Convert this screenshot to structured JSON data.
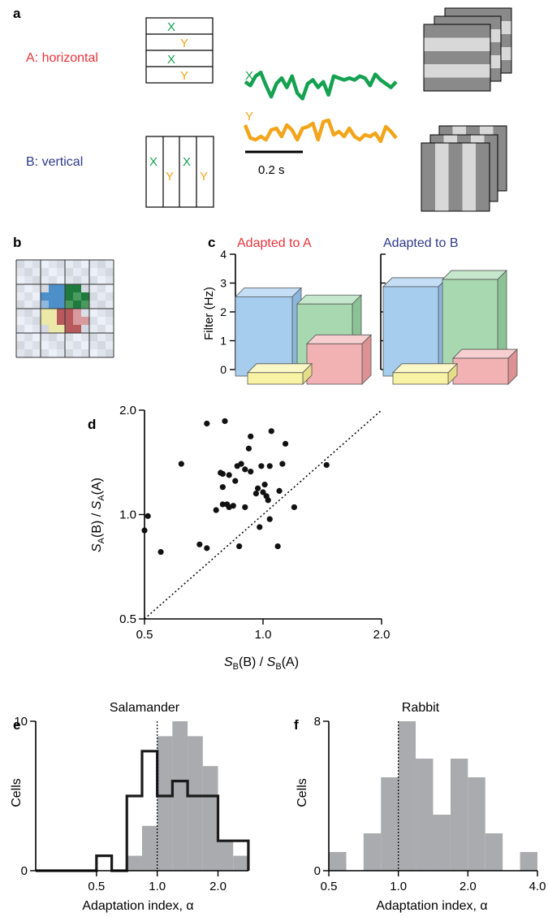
{
  "panel_labels": {
    "a": "a",
    "b": "b",
    "c": "c",
    "d": "d",
    "e": "e",
    "f": "f"
  },
  "panel_a": {
    "label_A": "A: horizontal",
    "label_B": "B: vertical",
    "label_A_color": "#e8343a",
    "label_B_color": "#2e3a8c",
    "x_label": "X",
    "y_label": "Y",
    "x_color": "#14a150",
    "y_color": "#f2a51a",
    "scale_label": "0.2 s",
    "trace_x": [
      0.45,
      0.55,
      0.3,
      0.2,
      0.55,
      0.85,
      0.5,
      0.35,
      0.6,
      0.3,
      0.75,
      0.9,
      0.5,
      0.4,
      0.6,
      0.45,
      0.8,
      0.3,
      0.35,
      0.4,
      0.35,
      0.4,
      0.3,
      0.35,
      0.55,
      0.25,
      0.4,
      0.5,
      0.6,
      0.45
    ],
    "trace_y": [
      0.35,
      0.75,
      0.8,
      0.7,
      0.8,
      0.5,
      0.45,
      0.7,
      0.35,
      0.5,
      0.8,
      0.45,
      0.4,
      0.3,
      0.8,
      0.25,
      0.2,
      0.65,
      0.55,
      0.7,
      0.45,
      0.7,
      0.8,
      0.65,
      0.7,
      0.6,
      0.85,
      0.4,
      0.55,
      0.75
    ]
  },
  "chart_data": [
    {
      "panel": "c",
      "type": "bar",
      "ylabel": "Filter (Hz)",
      "ylim": [
        0,
        4
      ],
      "yticks": [
        "0",
        "1",
        "2",
        "3",
        "4"
      ],
      "groups": [
        {
          "title": "Adapted to A",
          "title_color": "#e8343a",
          "bars": [
            {
              "color": "blue",
              "value": 2.75
            },
            {
              "color": "green",
              "value": 2.5
            },
            {
              "color": "red",
              "value": 1.4
            },
            {
              "color": "yellow",
              "value": 0.4
            }
          ]
        },
        {
          "title": "Adapted to B",
          "title_color": "#2e3a8c",
          "bars": [
            {
              "color": "blue",
              "value": 3.1
            },
            {
              "color": "green",
              "value": 3.35
            },
            {
              "color": "red",
              "value": 0.9
            },
            {
              "color": "yellow",
              "value": 0.4
            }
          ]
        }
      ]
    },
    {
      "panel": "d",
      "type": "scatter",
      "xlabel_main": "S",
      "xlabel_sub": "B",
      "xlabel_rest": "(B) / ",
      "xlabel_main2": "S",
      "xlabel_sub2": "B",
      "xlabel_rest2": "(A)",
      "ylabel_main": "S",
      "ylabel_sub": "A",
      "ylabel_rest": "(B) / ",
      "ylabel_main2": "S",
      "ylabel_sub2": "A",
      "ylabel_rest2": "(A)",
      "xscale": "log",
      "yscale": "log",
      "xlim": [
        0.5,
        2.0
      ],
      "ylim": [
        0.5,
        2.0
      ],
      "xticks": [
        {
          "v": 0.5,
          "l": "0.5"
        },
        {
          "v": 1.0,
          "l": "1.0"
        },
        {
          "v": 2.0,
          "l": "2.0"
        }
      ],
      "yticks": [
        {
          "v": 0.5,
          "l": "0.5"
        },
        {
          "v": 1.0,
          "l": "1.0"
        },
        {
          "v": 2.0,
          "l": "2.0"
        }
      ],
      "diagonal": true,
      "points": [
        [
          0.5,
          0.9
        ],
        [
          0.51,
          0.99
        ],
        [
          0.55,
          0.78
        ],
        [
          0.62,
          1.4
        ],
        [
          0.69,
          0.82
        ],
        [
          0.72,
          0.8
        ],
        [
          0.72,
          1.83
        ],
        [
          0.76,
          1.03
        ],
        [
          0.78,
          1.32
        ],
        [
          0.79,
          1.07
        ],
        [
          0.79,
          1.2
        ],
        [
          0.79,
          1.31
        ],
        [
          0.8,
          1.86
        ],
        [
          0.81,
          1.07
        ],
        [
          0.82,
          1.05
        ],
        [
          0.82,
          1.3
        ],
        [
          0.84,
          1.06
        ],
        [
          0.85,
          1.25
        ],
        [
          0.86,
          1.38
        ],
        [
          0.87,
          0.81
        ],
        [
          0.88,
          1.4
        ],
        [
          0.9,
          1.05
        ],
        [
          0.9,
          1.35
        ],
        [
          0.92,
          1.55
        ],
        [
          0.93,
          1.33
        ],
        [
          0.93,
          1.68
        ],
        [
          0.96,
          1.15
        ],
        [
          0.97,
          1.19
        ],
        [
          0.98,
          0.92
        ],
        [
          0.99,
          1.38
        ],
        [
          1.0,
          1.16
        ],
        [
          1.01,
          1.22
        ],
        [
          1.02,
          1.13
        ],
        [
          1.03,
          1.1
        ],
        [
          1.04,
          0.97
        ],
        [
          1.04,
          1.38
        ],
        [
          1.05,
          1.74
        ],
        [
          1.09,
          0.81
        ],
        [
          1.1,
          1.17
        ],
        [
          1.12,
          1.4
        ],
        [
          1.14,
          1.6
        ],
        [
          1.2,
          1.05
        ],
        [
          1.45,
          1.39
        ]
      ]
    },
    {
      "panel": "e",
      "type": "bar",
      "title": "Salamander",
      "xlabel": "Adaptation index, α",
      "ylabel": "Cells",
      "xscale": "log",
      "xlim": [
        0.25,
        2.83
      ],
      "ylim": [
        0,
        10
      ],
      "xticks": [
        {
          "v": 0.5,
          "l": "0.5"
        },
        {
          "v": 1.0,
          "l": "1.0"
        },
        {
          "v": 2.0,
          "l": "2.0"
        }
      ],
      "yticks": [
        {
          "v": 0,
          "l": "0"
        },
        {
          "v": 10,
          "l": "10"
        }
      ],
      "bin_edges": [
        0.25,
        0.354,
        0.5,
        0.595,
        0.707,
        0.841,
        1.0,
        1.189,
        1.414,
        1.682,
        2.0,
        2.378,
        2.828
      ],
      "series": [
        {
          "style": "fill",
          "color": "#a9abae",
          "values": [
            0,
            0,
            0,
            0,
            1,
            3,
            9,
            10,
            9,
            7,
            2,
            1
          ]
        },
        {
          "style": "outline",
          "color": "#1a1a1a",
          "values": [
            0,
            0,
            1,
            0,
            5,
            8,
            5,
            6,
            5,
            5,
            2,
            2
          ]
        }
      ],
      "reference_x": 1.0
    },
    {
      "panel": "f",
      "type": "bar",
      "title": "Rabbit",
      "xlabel": "Adaptation index, α",
      "ylabel": "Cells",
      "xscale": "log",
      "xlim": [
        0.5,
        4.0
      ],
      "ylim": [
        0,
        8
      ],
      "xticks": [
        {
          "v": 0.5,
          "l": "0.5"
        },
        {
          "v": 1.0,
          "l": "1.0"
        },
        {
          "v": 2.0,
          "l": "2.0"
        },
        {
          "v": 4.0,
          "l": "4.0"
        }
      ],
      "yticks": [
        {
          "v": 0,
          "l": "0"
        },
        {
          "v": 8,
          "l": "8"
        }
      ],
      "bin_edges": [
        0.5,
        0.595,
        0.707,
        0.841,
        1.0,
        1.189,
        1.414,
        1.682,
        2.0,
        2.378,
        2.828,
        3.364,
        4.0
      ],
      "series": [
        {
          "style": "fill",
          "color": "#a9abae",
          "values": [
            1,
            0,
            2,
            5,
            8,
            6,
            3,
            6,
            5,
            2,
            0,
            1
          ]
        }
      ],
      "reference_x": 1.0
    }
  ]
}
